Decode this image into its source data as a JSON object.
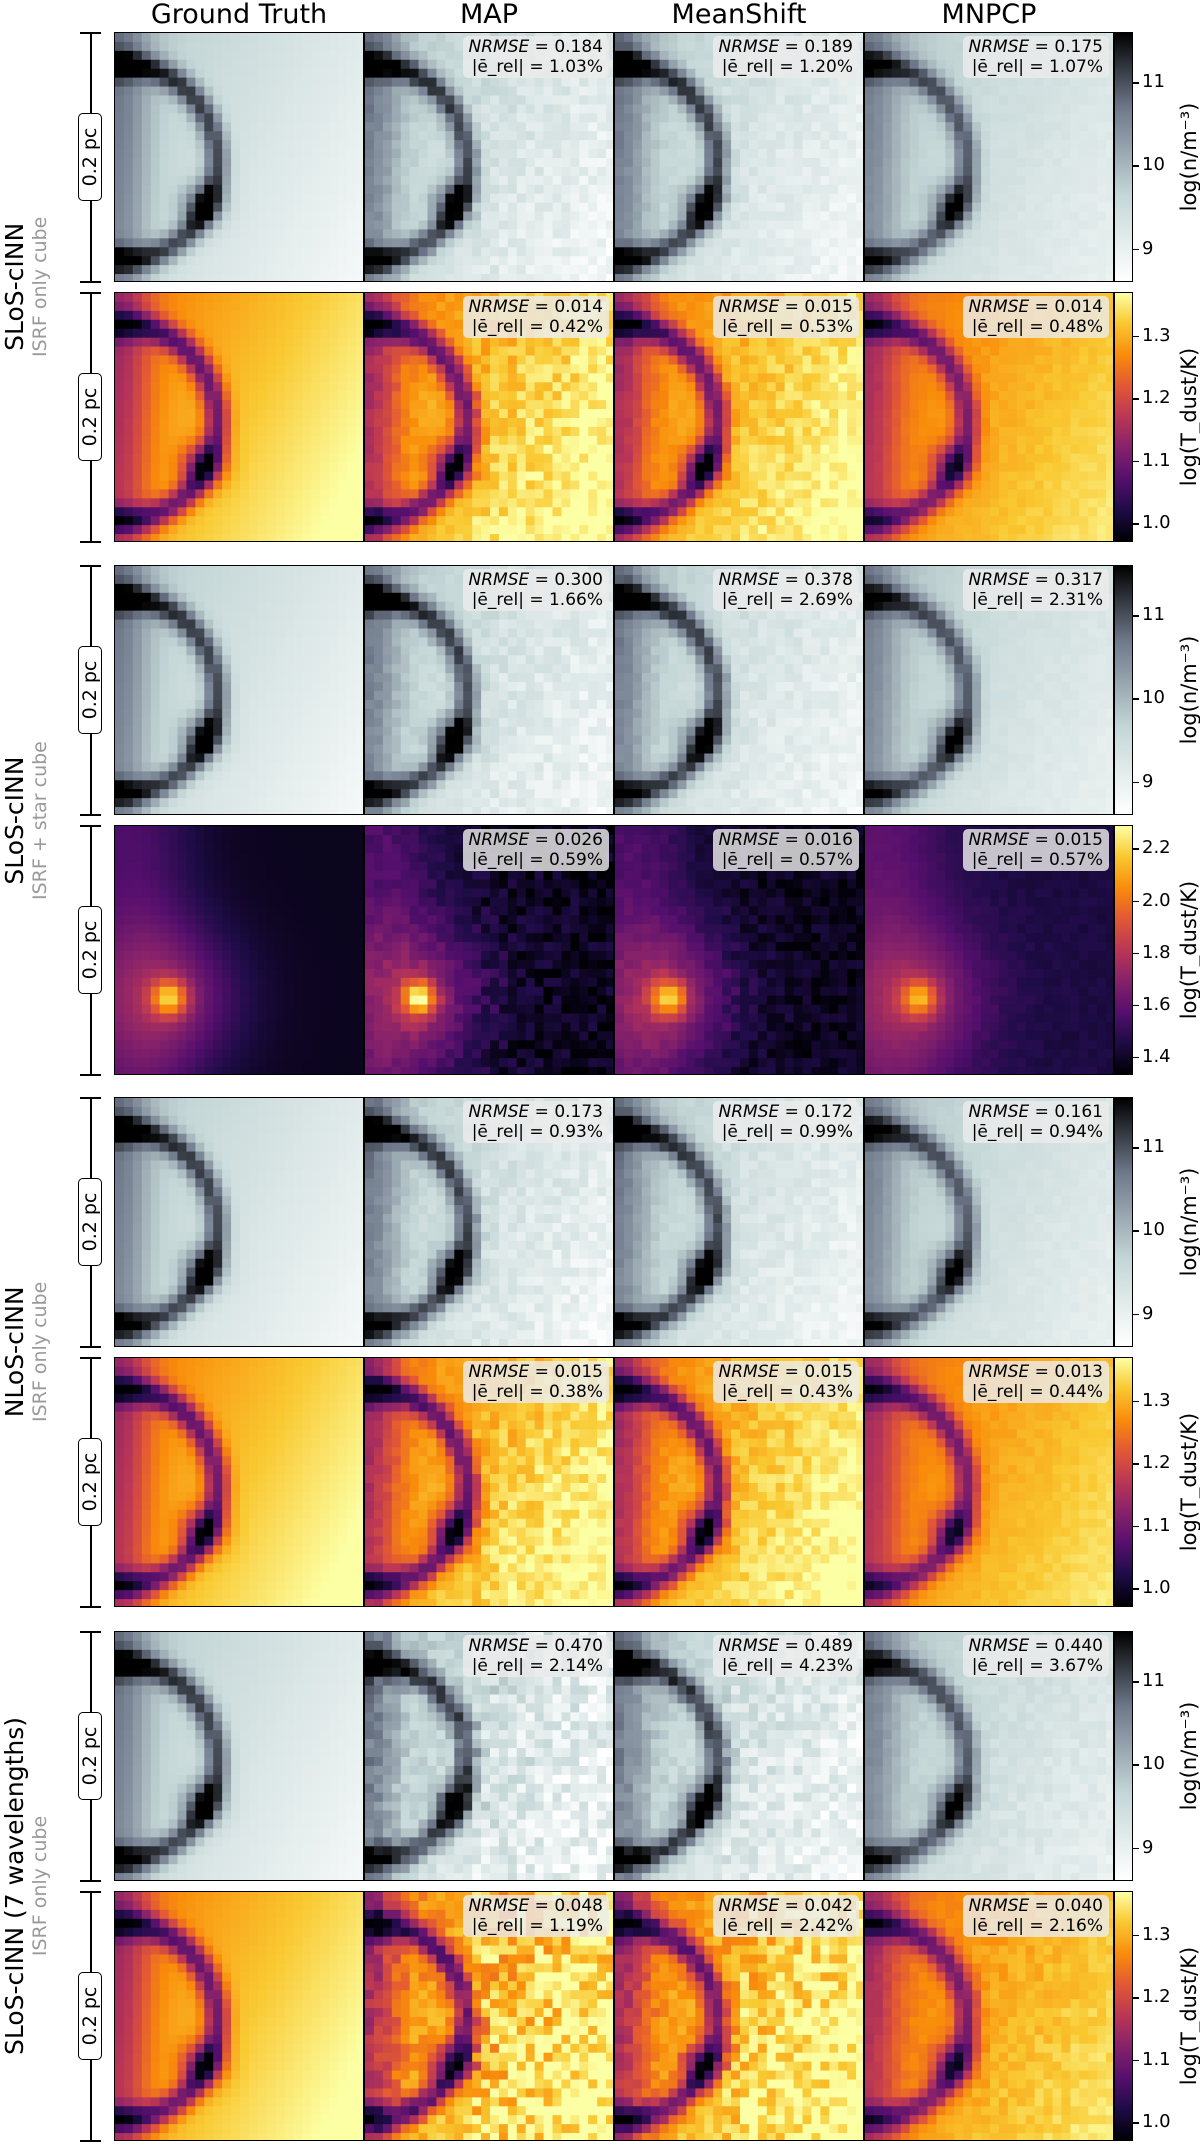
{
  "chart_data": {
    "type": "heatmap",
    "columns": [
      "Ground Truth",
      "MAP",
      "MeanShift",
      "MNPCP"
    ],
    "scale_bar_label": "0.2 pc",
    "metric_labels": {
      "nrmse": "NRMSE",
      "erel": "|ē_rel|"
    },
    "colorbars": {
      "density": {
        "label": "log(n/m⁻³)",
        "colormap": "bone_r",
        "range": [
          8.6,
          11.6
        ],
        "ticks": [
          9,
          10,
          11
        ]
      },
      "temp_cold": {
        "label": "log(T_dust/K)",
        "colormap": "inferno",
        "range": [
          0.97,
          1.37
        ],
        "ticks": [
          "1.0",
          "1.1",
          "1.2",
          "1.3"
        ]
      },
      "temp_hot": {
        "label": "log(T_dust/K)",
        "colormap": "inferno",
        "range": [
          1.33,
          2.29
        ],
        "ticks": [
          "1.4",
          "1.6",
          "1.8",
          "2.0",
          "2.2"
        ]
      }
    },
    "groups": [
      {
        "model": "SLoS-cINN",
        "setup": "ISRF only cube",
        "rows": [
          {
            "quantity": "density",
            "metrics": [
              {
                "nrmse": "0.184",
                "erel": "1.03%"
              },
              {
                "nrmse": "0.189",
                "erel": "1.20%"
              },
              {
                "nrmse": "0.175",
                "erel": "1.07%"
              }
            ]
          },
          {
            "quantity": "temp_cold",
            "metrics": [
              {
                "nrmse": "0.014",
                "erel": "0.42%"
              },
              {
                "nrmse": "0.015",
                "erel": "0.53%"
              },
              {
                "nrmse": "0.014",
                "erel": "0.48%"
              }
            ]
          }
        ]
      },
      {
        "model": "SLoS-cINN",
        "setup": "ISRF + star cube",
        "rows": [
          {
            "quantity": "density",
            "metrics": [
              {
                "nrmse": "0.300",
                "erel": "1.66%"
              },
              {
                "nrmse": "0.378",
                "erel": "2.69%"
              },
              {
                "nrmse": "0.317",
                "erel": "2.31%"
              }
            ]
          },
          {
            "quantity": "temp_hot",
            "metrics": [
              {
                "nrmse": "0.026",
                "erel": "0.59%"
              },
              {
                "nrmse": "0.016",
                "erel": "0.57%"
              },
              {
                "nrmse": "0.015",
                "erel": "0.57%"
              }
            ]
          }
        ]
      },
      {
        "model": "NLoS-cINN",
        "setup": "ISRF only cube",
        "rows": [
          {
            "quantity": "density",
            "metrics": [
              {
                "nrmse": "0.173",
                "erel": "0.93%"
              },
              {
                "nrmse": "0.172",
                "erel": "0.99%"
              },
              {
                "nrmse": "0.161",
                "erel": "0.94%"
              }
            ]
          },
          {
            "quantity": "temp_cold",
            "metrics": [
              {
                "nrmse": "0.015",
                "erel": "0.38%"
              },
              {
                "nrmse": "0.015",
                "erel": "0.43%"
              },
              {
                "nrmse": "0.013",
                "erel": "0.44%"
              }
            ]
          }
        ]
      },
      {
        "model": "SLoS-cINN (7 wavelengths)",
        "setup": "ISRF only cube",
        "rows": [
          {
            "quantity": "density",
            "metrics": [
              {
                "nrmse": "0.470",
                "erel": "2.14%"
              },
              {
                "nrmse": "0.489",
                "erel": "4.23%"
              },
              {
                "nrmse": "0.440",
                "erel": "3.67%"
              }
            ]
          },
          {
            "quantity": "temp_cold",
            "metrics": [
              {
                "nrmse": "0.048",
                "erel": "1.19%"
              },
              {
                "nrmse": "0.042",
                "erel": "2.42%"
              },
              {
                "nrmse": "0.040",
                "erel": "2.16%"
              }
            ]
          }
        ]
      }
    ]
  }
}
